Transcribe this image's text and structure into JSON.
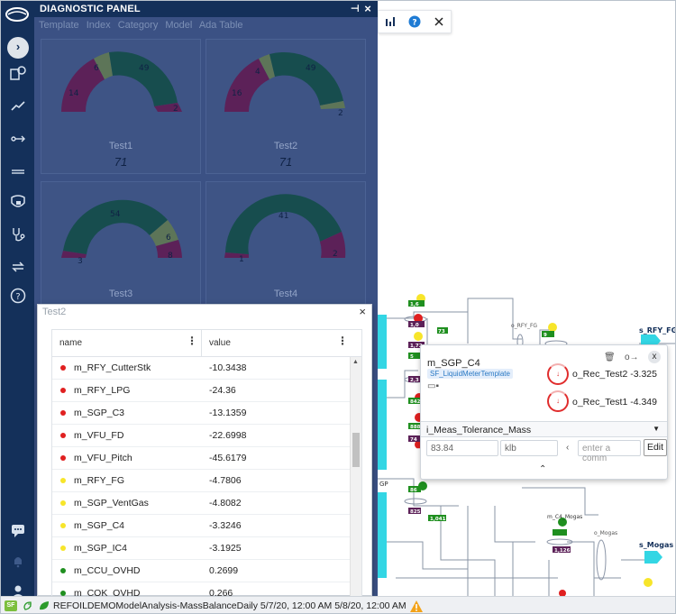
{
  "panel": {
    "title": "DIAGNOSTIC PANEL",
    "tabs": [
      "Template",
      "Index",
      "Category",
      "Model",
      "Ada Table"
    ],
    "gauges": [
      {
        "name": "Test1",
        "value": "71",
        "labels": [
          "14",
          "6",
          "49",
          "2"
        ]
      },
      {
        "name": "Test2",
        "value": "71",
        "labels": [
          "16",
          "4",
          "49",
          "2"
        ]
      },
      {
        "name": "Test3",
        "value": "",
        "labels": [
          "3",
          "54",
          "6",
          "8"
        ]
      },
      {
        "name": "Test4",
        "value": "",
        "labels": [
          "1",
          "41",
          "2"
        ]
      }
    ]
  },
  "table_dialog": {
    "title": "Test2",
    "columns": [
      "name",
      "value"
    ],
    "rows": [
      {
        "name": "m_RFY_CutterStk",
        "value": "-10.3438",
        "status": "red"
      },
      {
        "name": "m_RFY_LPG",
        "value": "-24.36",
        "status": "red"
      },
      {
        "name": "m_SGP_C3",
        "value": "-13.1359",
        "status": "red"
      },
      {
        "name": "m_VFU_FD",
        "value": "-22.6998",
        "status": "red"
      },
      {
        "name": "m_VFU_Pitch",
        "value": "-45.6179",
        "status": "red"
      },
      {
        "name": "m_RFY_FG",
        "value": "-4.7806",
        "status": "yellow"
      },
      {
        "name": "m_SGP_VentGas",
        "value": "-4.8082",
        "status": "yellow"
      },
      {
        "name": "m_SGP_C4",
        "value": "-3.3246",
        "status": "yellow"
      },
      {
        "name": "m_SGP_IC4",
        "value": "-3.1925",
        "status": "yellow"
      },
      {
        "name": "m_CCU_OVHD",
        "value": "0.2699",
        "status": "green"
      },
      {
        "name": "m_COK_OVHD",
        "value": "0.266",
        "status": "green"
      }
    ]
  },
  "popup": {
    "title": "m_SGP_C4",
    "template": "SF_LiquidMeterTemplate",
    "rec1": "o_Rec_Test2 -3.325",
    "rec2": "o_Rec_Test1 -4.349",
    "select_value": "i_Meas_Tolerance_Mass",
    "value_field": "83.84",
    "unit_field": "klb",
    "comment_placeholder": "enter a comm",
    "edit_label": "Edit"
  },
  "diagram": {
    "labels": {
      "rfy_fg_small": "o_RFY_FG",
      "rfy_fg": "s_RFY_FG",
      "c4_mogas": "m_C4_Mogas",
      "mogas_small": "o_Mogas",
      "mogas": "s_Mogas",
      "gp": "GP"
    },
    "tags": [
      "1,6",
      "1,0",
      "1,72",
      "73",
      "5",
      "2,3",
      "9",
      "842",
      "888",
      "74",
      "5",
      "568",
      "86",
      "825",
      "1,041",
      "1,126"
    ]
  },
  "status_bar": {
    "badge": "SF",
    "text": "REFOILDEMOModelAnalysis-MassBalanceDaily 5/7/20, 12:00 AM 5/8/20, 12:00 AM"
  },
  "colors": {
    "nav": "#14305a",
    "panel": "#3b5184",
    "gauge_green": "#174d4e",
    "gauge_purple": "#5c2158",
    "gauge_olive": "#5d7558",
    "red": "#e02020",
    "yellow": "#f7e52a",
    "green": "#1f8f1f"
  }
}
